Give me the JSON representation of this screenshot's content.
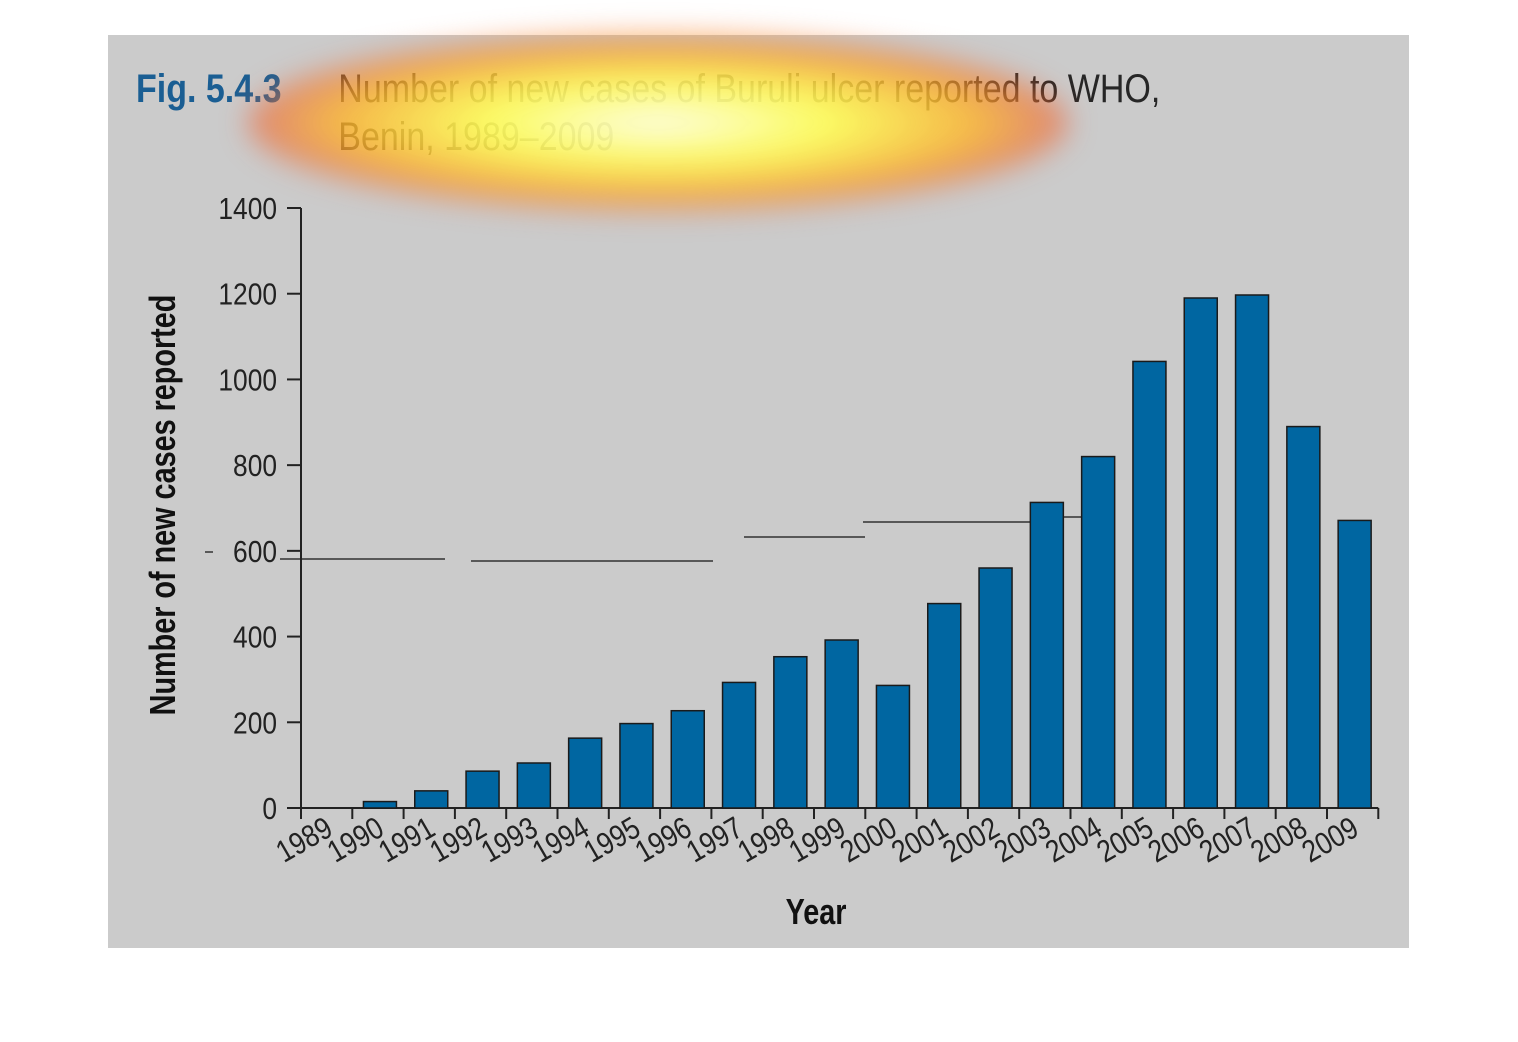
{
  "figure": {
    "number": "Fig. 5.4.3",
    "title_line1": "Number of new cases of Buruli ulcer reported to WHO,",
    "title_line2": "Benin, 1989–2009"
  },
  "colors": {
    "background": "#cbcbcb",
    "bar_fill": "#0066a1",
    "bar_stroke": "#1a1a1a",
    "figure_number": "#1a5e93"
  },
  "chart_data": {
    "type": "bar",
    "categories": [
      "1989",
      "1990",
      "1991",
      "1992",
      "1993",
      "1994",
      "1995",
      "1996",
      "1997",
      "1998",
      "1999",
      "2000",
      "2001",
      "2002",
      "2003",
      "2004",
      "2005",
      "2006",
      "2007",
      "2008",
      "2009"
    ],
    "values": [
      0,
      15,
      40,
      86,
      105,
      163,
      197,
      227,
      293,
      353,
      392,
      286,
      477,
      560,
      713,
      820,
      1042,
      1190,
      1197,
      890,
      671
    ],
    "title": "Number of new cases of Buruli ulcer reported to WHO, Benin, 1989–2009",
    "xlabel": "Year",
    "ylabel": "Number of new cases reported",
    "ylim": [
      0,
      1400
    ],
    "yticks": [
      0,
      200,
      400,
      600,
      800,
      1000,
      1200,
      1400
    ],
    "grid": false,
    "legend": "none"
  }
}
